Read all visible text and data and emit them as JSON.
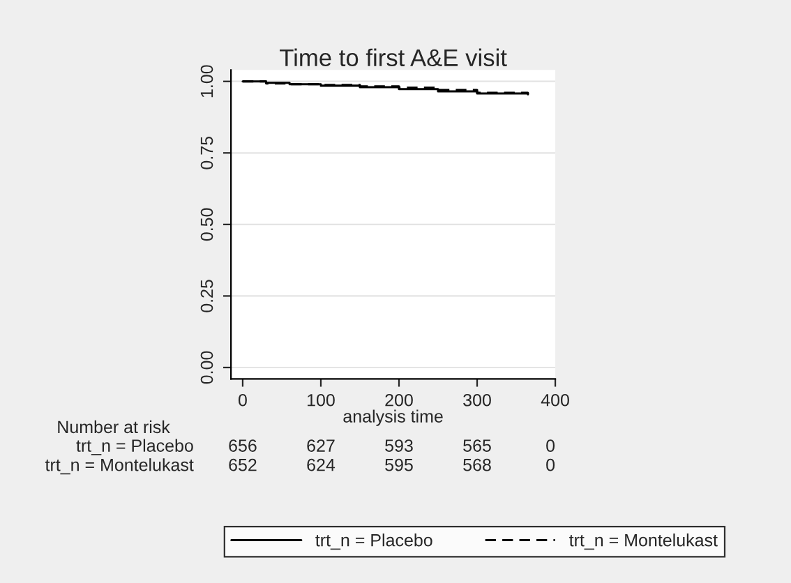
{
  "chart_data": {
    "type": "step",
    "title": "Time to first A&E visit",
    "xlabel": "analysis time",
    "series": [
      {
        "name": "trt_n = Placebo",
        "color": "#000000",
        "line_style": "solid",
        "x": [
          0,
          30,
          60,
          100,
          150,
          200,
          250,
          300,
          365
        ],
        "values": [
          1.0,
          0.995,
          0.99,
          0.985,
          0.98,
          0.973,
          0.965,
          0.958,
          0.955
        ]
      },
      {
        "name": "trt_n = Montelukast",
        "color": "#000000",
        "line_style": "dashed",
        "x": [
          0,
          30,
          60,
          100,
          150,
          200,
          250,
          300,
          365
        ],
        "values": [
          1.0,
          0.993,
          0.99,
          0.988,
          0.983,
          0.978,
          0.97,
          0.96,
          0.957
        ]
      }
    ],
    "xlim": [
      -15,
      400
    ],
    "xticks": [
      0,
      100,
      200,
      300,
      400
    ],
    "ylim": [
      -0.04,
      1.04
    ],
    "yticks": [
      {
        "value": 0,
        "label": "0.00"
      },
      {
        "value": 0.25,
        "label": "0.25"
      },
      {
        "value": 0.5,
        "label": "0.50"
      },
      {
        "value": 0.75,
        "label": "0.75"
      },
      {
        "value": 1,
        "label": "1.00"
      }
    ],
    "grid": "y",
    "legend": "bottom",
    "annotations": [
      "Number at risk",
      "trt_n = Placebo",
      "656",
      "627",
      "593",
      "565",
      "0",
      "trt_n = Montelukast",
      "652",
      "624",
      "595",
      "568",
      "0"
    ]
  }
}
